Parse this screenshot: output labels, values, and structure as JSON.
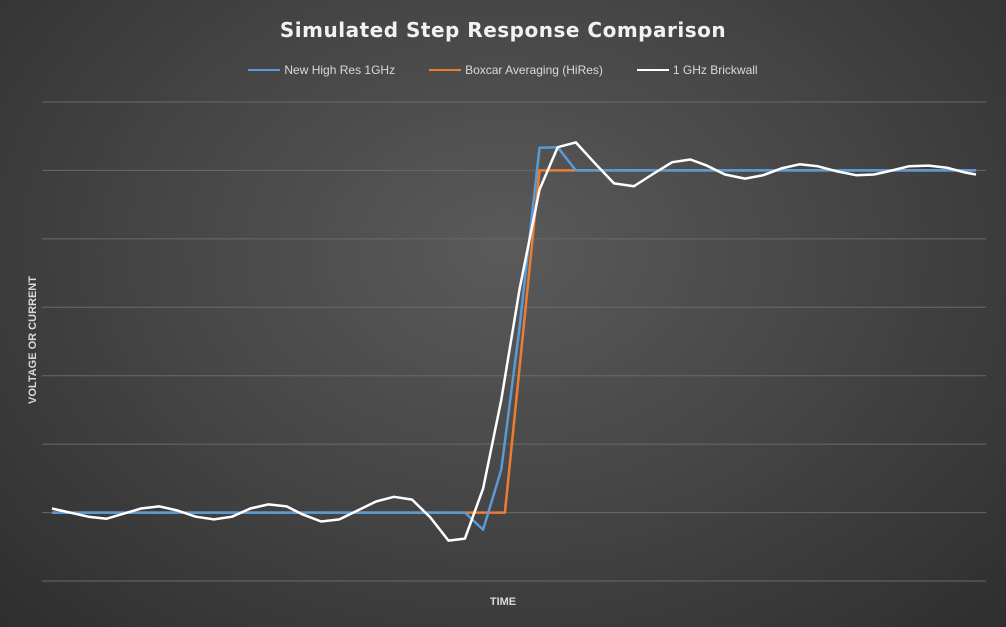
{
  "chart_data": {
    "type": "line",
    "title": "Simulated Step Response Comparison",
    "xlabel": "TIME",
    "ylabel": "VOLTAGE OR CURRENT",
    "xlim": [
      0,
      50.8
    ],
    "ylim": [
      -1,
      6
    ],
    "yticks": [
      -1,
      0,
      1,
      2,
      3,
      4,
      5,
      6
    ],
    "grid": true,
    "legend_position": "top",
    "series": [
      {
        "name": "New High Res 1GHz",
        "color": "#5b9bd5",
        "x": [
          0,
          22.7,
          23.7,
          24.7,
          25.7,
          26.8,
          27.8,
          28.8,
          50.8
        ],
        "y": [
          0,
          0,
          -0.25,
          0.63,
          2.7,
          5.33,
          5.34,
          5,
          5
        ]
      },
      {
        "name": "Boxcar Averaging (HiRes)",
        "color": "#ed7d31",
        "x": [
          0,
          24.9,
          26.8,
          50.8
        ],
        "y": [
          0,
          0,
          5,
          5
        ]
      },
      {
        "name": "1 GHz Brickwall",
        "color": "#ffffff",
        "x": [
          0,
          1,
          2,
          3,
          4,
          4.9,
          5.9,
          6.9,
          7.9,
          8.9,
          9.9,
          10.9,
          11.9,
          12.9,
          13.8,
          14.8,
          15.8,
          16.8,
          17.8,
          18.8,
          19.8,
          20.8,
          21.8,
          22.7,
          23.7,
          24.7,
          25.7,
          26.8,
          27.8,
          28.8,
          29.9,
          30.9,
          32,
          33,
          34.1,
          35.1,
          36,
          37,
          38.1,
          39.1,
          40.1,
          41.1,
          42.1,
          43.1,
          44.2,
          45.2,
          46.2,
          47.1,
          48.2,
          49.2,
          50.2,
          50.8
        ],
        "y": [
          0.06,
          0,
          -0.06,
          -0.09,
          -0.01,
          0.06,
          0.09,
          0.03,
          -0.06,
          -0.1,
          -0.06,
          0.06,
          0.12,
          0.09,
          -0.03,
          -0.13,
          -0.1,
          0.03,
          0.16,
          0.23,
          0.19,
          -0.07,
          -0.41,
          -0.38,
          0.35,
          1.65,
          3.26,
          4.72,
          5.34,
          5.41,
          5.09,
          4.81,
          4.77,
          4.94,
          5.12,
          5.16,
          5.07,
          4.94,
          4.88,
          4.93,
          5.03,
          5.09,
          5.06,
          4.99,
          4.93,
          4.94,
          5,
          5.06,
          5.07,
          5.04,
          4.97,
          4.94
        ]
      }
    ]
  }
}
